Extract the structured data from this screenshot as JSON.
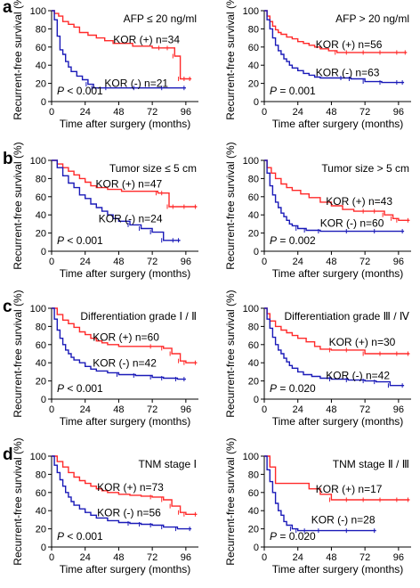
{
  "panel_labels": [
    "a",
    "b",
    "c",
    "d"
  ],
  "colors": {
    "kor_pos": "#ff2a2a",
    "kor_neg": "#1a1ab8"
  },
  "chart_data": [
    {
      "type": "line",
      "title": "AFP ≤ 20 ng/ml",
      "xlabel": "Time after surgery (months)",
      "ylabel": "Recurrent-free survival (%)",
      "xlim": [
        0,
        105
      ],
      "ylim": [
        0,
        100
      ],
      "xticks": [
        0,
        24,
        48,
        72,
        96
      ],
      "yticks": [
        0,
        20,
        40,
        60,
        80,
        100
      ],
      "p_value": {
        "prefix": "P",
        "text": " < 0.001"
      },
      "series": [
        {
          "name": "KOR (+) n=34",
          "x": [
            0,
            2,
            5,
            8,
            12,
            16,
            20,
            26,
            32,
            38,
            44,
            50,
            58,
            66,
            72,
            78,
            84,
            88,
            92,
            96,
            100
          ],
          "y": [
            100,
            97,
            94,
            88,
            85,
            82,
            76,
            73,
            70,
            67,
            64,
            64,
            61,
            61,
            59,
            59,
            59,
            50,
            25,
            25,
            25
          ]
        },
        {
          "name": "KOR (-) n=21",
          "x": [
            0,
            2,
            4,
            6,
            8,
            10,
            12,
            14,
            18,
            22,
            26,
            30,
            40,
            60,
            80,
            96
          ],
          "y": [
            100,
            90,
            72,
            57,
            52,
            44,
            38,
            33,
            28,
            24,
            19,
            15,
            15,
            15,
            15,
            15
          ]
        }
      ]
    },
    {
      "type": "line",
      "title": "AFP > 20 ng/ml",
      "xlabel": "Time after surgery (months)",
      "ylabel": "Recurrent-free survival (%)",
      "xlim": [
        0,
        105
      ],
      "ylim": [
        0,
        100
      ],
      "xticks": [
        0,
        24,
        48,
        72,
        96
      ],
      "yticks": [
        0,
        20,
        40,
        60,
        80,
        100
      ],
      "p_value": {
        "prefix": "P",
        "text": " = 0.001"
      },
      "series": [
        {
          "name": "KOR (+) n=56",
          "x": [
            0,
            2,
            4,
            6,
            8,
            10,
            12,
            16,
            20,
            24,
            28,
            32,
            36,
            40,
            46,
            52,
            60,
            72,
            84,
            96,
            102
          ],
          "y": [
            100,
            94,
            88,
            83,
            79,
            76,
            74,
            71,
            69,
            66,
            64,
            62,
            60,
            58,
            56,
            54,
            54,
            54,
            54,
            54,
            54
          ]
        },
        {
          "name": "KOR (-) n=63",
          "x": [
            0,
            2,
            4,
            6,
            8,
            10,
            12,
            14,
            16,
            18,
            20,
            24,
            28,
            32,
            36,
            40,
            48,
            56,
            62,
            72,
            84,
            96,
            100
          ],
          "y": [
            100,
            90,
            80,
            70,
            62,
            56,
            52,
            47,
            44,
            40,
            37,
            34,
            31,
            29,
            27,
            26,
            26,
            26,
            25,
            22,
            21,
            21,
            21
          ]
        }
      ]
    },
    {
      "type": "line",
      "title": "Tumor size ≤ 5 cm",
      "xlabel": "Time after surgery (months)",
      "ylabel": "Recurrent-free survival (%)",
      "xlim": [
        0,
        105
      ],
      "ylim": [
        0,
        100
      ],
      "xticks": [
        0,
        24,
        48,
        72,
        96
      ],
      "yticks": [
        0,
        20,
        40,
        60,
        80,
        100
      ],
      "p_value": {
        "prefix": "P",
        "text": " < 0.001"
      },
      "series": [
        {
          "name": "KOR (+) n=47",
          "x": [
            0,
            4,
            8,
            12,
            16,
            20,
            24,
            28,
            32,
            40,
            50,
            60,
            70,
            76,
            80,
            84,
            88,
            96,
            104
          ],
          "y": [
            100,
            96,
            92,
            88,
            84,
            80,
            76,
            72,
            70,
            68,
            66,
            66,
            66,
            64,
            64,
            49,
            49,
            49,
            49
          ]
        },
        {
          "name": "KOR (-) n=24",
          "x": [
            0,
            4,
            8,
            12,
            16,
            20,
            24,
            28,
            32,
            36,
            40,
            44,
            48,
            56,
            64,
            72,
            80,
            88,
            92
          ],
          "y": [
            100,
            92,
            83,
            75,
            70,
            62,
            58,
            52,
            48,
            44,
            40,
            36,
            33,
            29,
            25,
            21,
            12,
            12,
            12
          ]
        }
      ]
    },
    {
      "type": "line",
      "title": "Tumor size > 5 cm",
      "xlabel": "Time after surgery (months)",
      "ylabel": "Recurrent-free survival (%)",
      "xlim": [
        0,
        105
      ],
      "ylim": [
        0,
        100
      ],
      "xticks": [
        0,
        24,
        48,
        72,
        96
      ],
      "yticks": [
        0,
        20,
        40,
        60,
        80,
        100
      ],
      "p_value": {
        "prefix": "P",
        "text": " = 0.002"
      },
      "series": [
        {
          "name": "KOR (+) n=43",
          "x": [
            0,
            2,
            5,
            8,
            12,
            16,
            20,
            26,
            32,
            40,
            48,
            56,
            64,
            72,
            80,
            86,
            92,
            96,
            104
          ],
          "y": [
            100,
            92,
            86,
            80,
            74,
            70,
            67,
            63,
            59,
            54,
            50,
            46,
            44,
            44,
            44,
            40,
            36,
            34,
            34
          ]
        },
        {
          "name": "KOR (-) n=60",
          "x": [
            0,
            2,
            4,
            6,
            8,
            10,
            12,
            14,
            16,
            18,
            20,
            24,
            30,
            40,
            60,
            80,
            100
          ],
          "y": [
            100,
            86,
            72,
            62,
            54,
            48,
            42,
            38,
            34,
            30,
            28,
            25,
            23,
            22,
            22,
            22,
            22
          ]
        }
      ]
    },
    {
      "type": "line",
      "title": "Differentiation grade Ⅰ / Ⅱ",
      "xlabel": "Time after surgery (months)",
      "ylabel": "Recurrent-free survival (%)",
      "xlim": [
        0,
        105
      ],
      "ylim": [
        0,
        100
      ],
      "xticks": [
        0,
        24,
        48,
        72,
        96
      ],
      "yticks": [
        0,
        20,
        40,
        60,
        80,
        100
      ],
      "p_value": {
        "prefix": "P",
        "text": " < 0.001"
      },
      "series": [
        {
          "name": "KOR (+) n=60",
          "x": [
            0,
            4,
            8,
            12,
            16,
            20,
            24,
            28,
            32,
            36,
            40,
            48,
            60,
            72,
            80,
            86,
            92,
            96,
            104
          ],
          "y": [
            100,
            93,
            87,
            83,
            79,
            74,
            71,
            67,
            64,
            62,
            60,
            58,
            58,
            58,
            56,
            50,
            42,
            40,
            40
          ]
        },
        {
          "name": "KOR (-) n=42",
          "x": [
            0,
            2,
            4,
            6,
            8,
            10,
            12,
            14,
            16,
            20,
            24,
            28,
            32,
            40,
            48,
            60,
            72,
            80,
            90,
            96
          ],
          "y": [
            100,
            88,
            76,
            67,
            60,
            54,
            50,
            46,
            43,
            40,
            36,
            33,
            31,
            29,
            27,
            26,
            24,
            23,
            22,
            22
          ]
        }
      ]
    },
    {
      "type": "line",
      "title": "Differentiation grade Ⅲ / Ⅳ",
      "xlabel": "Time after surgery (months)",
      "ylabel": "Recurrent-free survival (%)",
      "xlim": [
        0,
        105
      ],
      "ylim": [
        0,
        100
      ],
      "xticks": [
        0,
        24,
        48,
        72,
        96
      ],
      "yticks": [
        0,
        20,
        40,
        60,
        80,
        100
      ],
      "p_value": {
        "prefix": "P",
        "text": " = 0.020"
      },
      "series": [
        {
          "name": "KOR (+) n=30",
          "x": [
            0,
            2,
            4,
            8,
            12,
            16,
            20,
            24,
            30,
            36,
            40,
            48,
            60,
            72,
            84,
            96,
            104
          ],
          "y": [
            100,
            94,
            86,
            80,
            76,
            73,
            70,
            67,
            63,
            58,
            55,
            54,
            54,
            50,
            50,
            50,
            50
          ]
        },
        {
          "name": "KOR (-) n=42",
          "x": [
            0,
            2,
            4,
            6,
            8,
            10,
            12,
            14,
            16,
            18,
            20,
            24,
            28,
            34,
            40,
            48,
            60,
            72,
            80,
            90,
            100
          ],
          "y": [
            100,
            88,
            78,
            68,
            60,
            54,
            50,
            45,
            41,
            37,
            34,
            30,
            27,
            25,
            23,
            22,
            21,
            20,
            19,
            15,
            15
          ]
        }
      ]
    },
    {
      "type": "line",
      "title": "TNM stage Ⅰ",
      "xlabel": "Time after surgery (months)",
      "ylabel": "Recurrent-free survival (%)",
      "xlim": [
        0,
        105
      ],
      "ylim": [
        0,
        100
      ],
      "xticks": [
        0,
        24,
        48,
        72,
        96
      ],
      "yticks": [
        0,
        20,
        40,
        60,
        80,
        100
      ],
      "p_value": {
        "prefix": "P",
        "text": " < 0.001"
      },
      "series": [
        {
          "name": "KOR (+) n=73",
          "x": [
            0,
            4,
            8,
            12,
            16,
            20,
            24,
            28,
            32,
            36,
            40,
            48,
            56,
            64,
            72,
            80,
            86,
            92,
            96,
            104
          ],
          "y": [
            100,
            94,
            88,
            82,
            77,
            73,
            70,
            67,
            64,
            62,
            60,
            58,
            57,
            56,
            55,
            52,
            45,
            38,
            36,
            36
          ]
        },
        {
          "name": "KOR (-) n=56",
          "x": [
            0,
            2,
            4,
            6,
            8,
            10,
            12,
            14,
            16,
            20,
            24,
            28,
            32,
            40,
            48,
            56,
            64,
            72,
            80,
            90,
            100
          ],
          "y": [
            100,
            90,
            82,
            74,
            67,
            60,
            55,
            50,
            46,
            42,
            38,
            35,
            32,
            29,
            27,
            26,
            25,
            24,
            22,
            20,
            20
          ]
        }
      ]
    },
    {
      "type": "line",
      "title": "TNM stage Ⅱ / Ⅲ",
      "xlabel": "Time after surgery (months)",
      "ylabel": "Recurrent-free survival (%)",
      "xlim": [
        0,
        105
      ],
      "ylim": [
        0,
        100
      ],
      "xticks": [
        0,
        24,
        48,
        72,
        96
      ],
      "yticks": [
        0,
        20,
        40,
        60,
        80,
        100
      ],
      "p_value": {
        "prefix": "P",
        "text": " = 0.020"
      },
      "series": [
        {
          "name": "KOR (+) n=17",
          "x": [
            0,
            4,
            8,
            16,
            24,
            32,
            40,
            48,
            60,
            72,
            84,
            96,
            104
          ],
          "y": [
            100,
            88,
            70,
            70,
            70,
            64,
            58,
            52,
            52,
            52,
            52,
            52,
            52
          ]
        },
        {
          "name": "KOR (-) n=28",
          "x": [
            0,
            2,
            4,
            6,
            8,
            10,
            12,
            14,
            16,
            20,
            24,
            30,
            40,
            60,
            80
          ],
          "y": [
            100,
            85,
            72,
            60,
            48,
            40,
            35,
            28,
            24,
            20,
            18,
            18,
            18,
            18,
            18
          ]
        }
      ]
    }
  ]
}
